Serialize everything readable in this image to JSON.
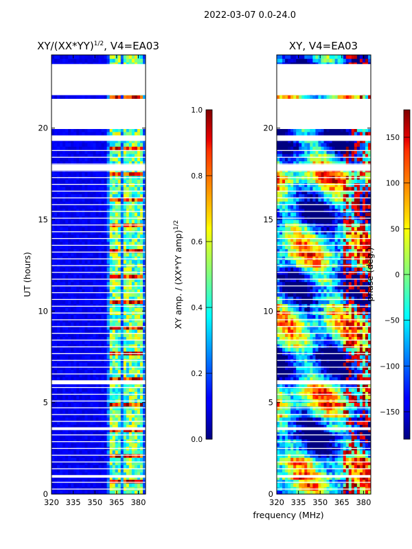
{
  "figure": {
    "suptitle": "2022-03-07 0.0-24.0",
    "shared_xlabel": "frequency (MHz)"
  },
  "chart_data": [
    {
      "type": "heatmap",
      "title_main": "XY/(XX*YY)",
      "title_exp": "1/2",
      "title_suffix": ", V4=EA03",
      "xlabel": "",
      "ylabel": "UT (hours)",
      "xlim": [
        320,
        385
      ],
      "ylim": [
        0,
        24
      ],
      "xticks": [
        320,
        335,
        350,
        365,
        380
      ],
      "yticks": [
        0,
        5,
        10,
        15,
        20
      ],
      "colormap": "jet",
      "colorbar": {
        "label_main": "XY amp. / (XX*YY amp)",
        "label_exp": "1/2",
        "range": [
          0.0,
          1.0
        ],
        "ticks": [
          "0.0",
          "0.2",
          "0.4",
          "0.6",
          "0.8",
          "1.0"
        ]
      },
      "flagged_rows_hours": [
        [
          21.8,
          23.5
        ],
        [
          19.95,
          21.6
        ],
        [
          19.3,
          19.6
        ],
        [
          17.7,
          18.0
        ],
        [
          6.0,
          6.2
        ],
        [
          3.5,
          3.65
        ],
        [
          0.9,
          1.0
        ]
      ],
      "bright_channels_mhz": [
        361.5,
        366.5,
        371.5,
        376.5,
        381
      ]
    },
    {
      "type": "heatmap",
      "title": "XY, V4=EA03",
      "xlabel": "frequency (MHz)",
      "ylabel": "",
      "xlim": [
        320,
        385
      ],
      "ylim": [
        0,
        24
      ],
      "xticks": [
        320,
        335,
        350,
        365,
        380
      ],
      "yticks": [
        0,
        5,
        10,
        15,
        20
      ],
      "colormap": "jet",
      "colorbar": {
        "label": "phase (deg.)",
        "range": [
          -180,
          180
        ],
        "ticks": [
          "150",
          "100",
          "50",
          "0",
          "−50",
          "−100",
          "−150"
        ]
      },
      "flagged_rows_hours": [
        [
          21.8,
          23.5
        ],
        [
          19.95,
          21.6
        ],
        [
          19.3,
          19.6
        ],
        [
          17.7,
          18.0
        ],
        [
          6.0,
          6.2
        ],
        [
          3.5,
          3.65
        ],
        [
          0.9,
          1.0
        ]
      ]
    }
  ]
}
